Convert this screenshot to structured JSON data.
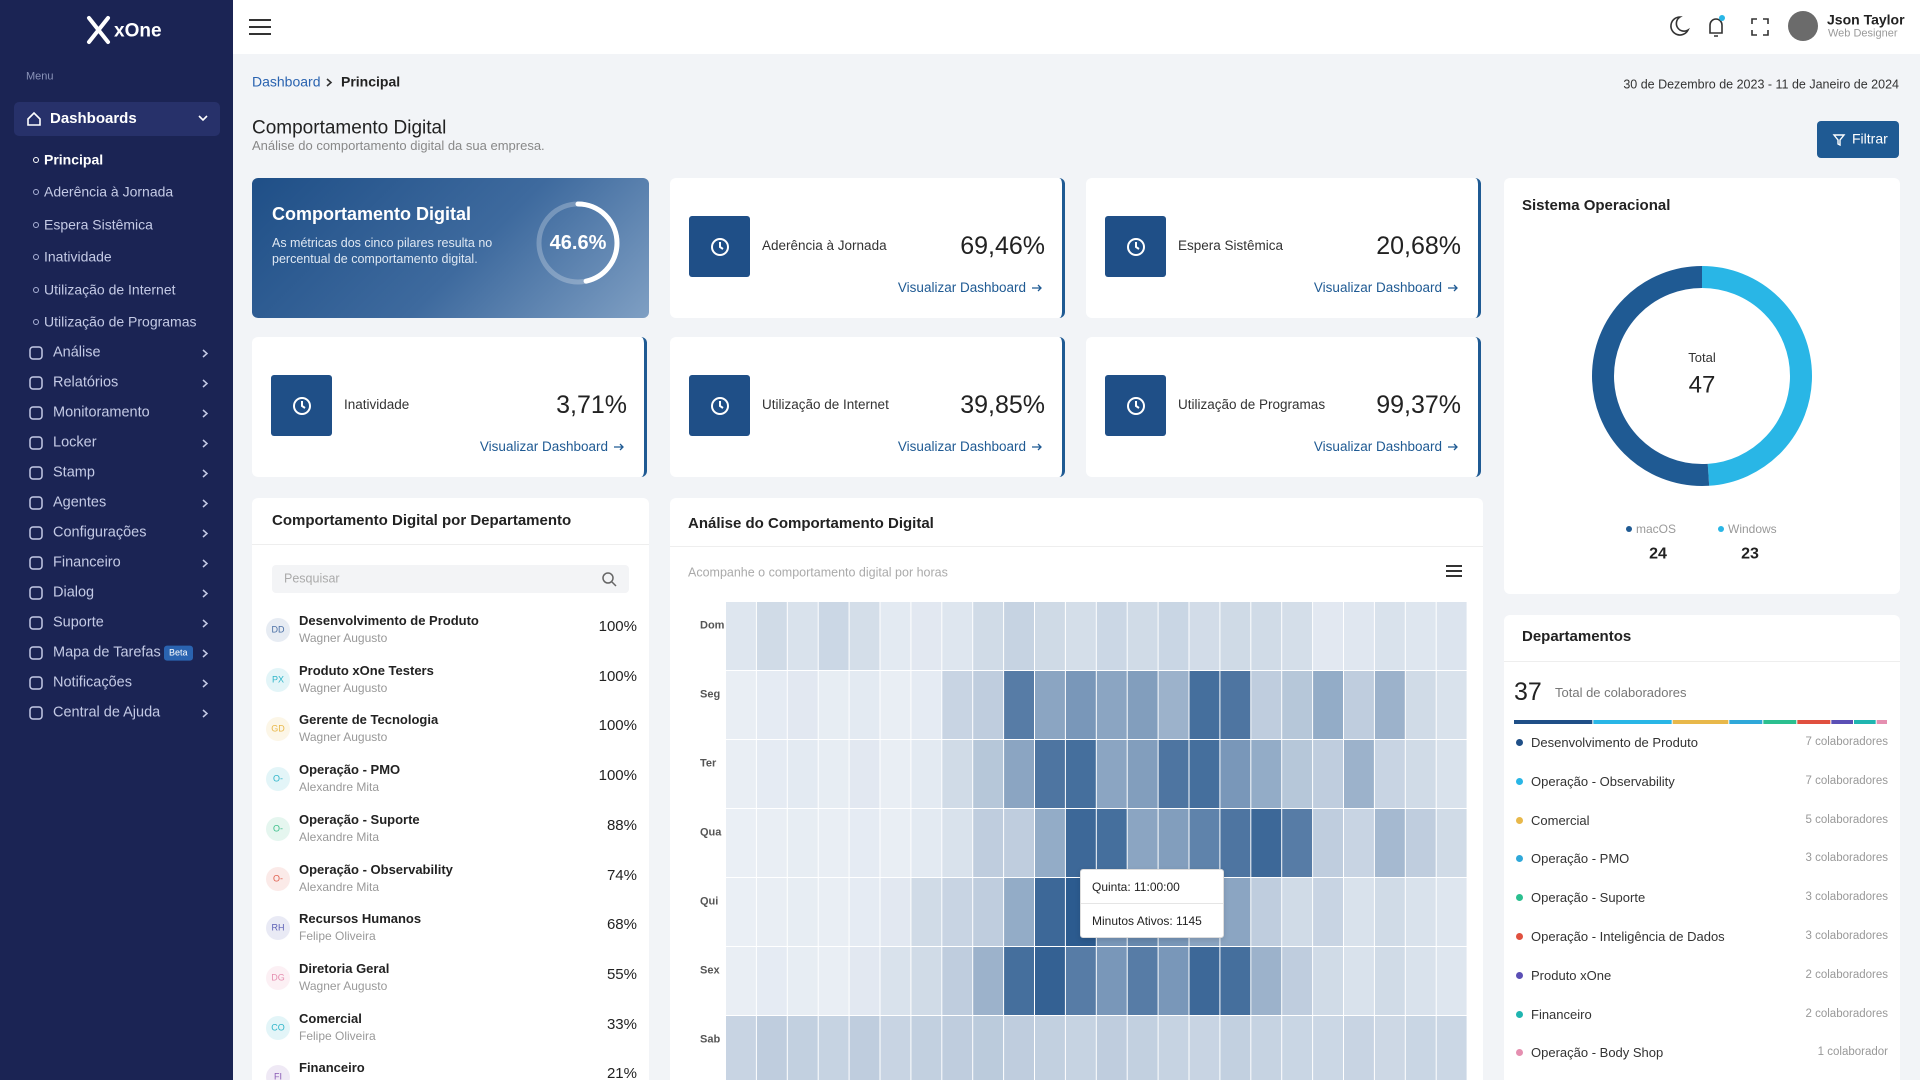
{
  "sidebar": {
    "brand": "xOne",
    "menu_label": "Menu",
    "items": [
      {
        "label": "Dashboards",
        "children": [
          "Principal",
          "Aderência à Jornada",
          "Espera Sistêmica",
          "Inatividade",
          "Utilização de Internet",
          "Utilização de Programas"
        ]
      },
      {
        "label": "Análise"
      },
      {
        "label": "Relatórios"
      },
      {
        "label": "Monitoramento"
      },
      {
        "label": "Locker"
      },
      {
        "label": "Stamp"
      },
      {
        "label": "Agentes"
      },
      {
        "label": "Configurações"
      },
      {
        "label": "Financeiro"
      },
      {
        "label": "Dialog"
      },
      {
        "label": "Suporte"
      },
      {
        "label": "Mapa de Tarefas",
        "badge": "Beta"
      },
      {
        "label": "Notificações"
      },
      {
        "label": "Central de Ajuda"
      }
    ]
  },
  "header": {
    "user_name": "Json Taylor",
    "user_role": "Web Designer"
  },
  "breadcrumb": [
    "Dashboard",
    "Principal"
  ],
  "date_range": "30 de Dezembro de 2023 - 11 de Janeiro de 2024",
  "page": {
    "title": "Comportamento Digital",
    "subtitle": "Análise do comportamento digital da sua empresa.",
    "filter_button": "Filtrar"
  },
  "hero": {
    "title": "Comportamento Digital",
    "text": "As métricas dos cinco pilares resulta no percentual de comportamento digital.",
    "gauge": {
      "value": 46.6,
      "value_label": "46.6%"
    }
  },
  "metrics": [
    {
      "label": "Aderência à Jornada",
      "value": "69,46%",
      "link": "Visualizar Dashboard"
    },
    {
      "label": "Espera Sistêmica",
      "value": "20,68%",
      "link": "Visualizar Dashboard"
    },
    {
      "label": "Inatividade",
      "value": "3,71%",
      "link": "Visualizar Dashboard"
    },
    {
      "label": "Utilização de Internet",
      "value": "39,85%",
      "link": "Visualizar Dashboard"
    },
    {
      "label": "Utilização de Programas",
      "value": "99,37%",
      "link": "Visualizar Dashboard"
    }
  ],
  "departments_panel": {
    "title": "Comportamento Digital por Departamento",
    "search_placeholder": "Pesquisar",
    "rows": [
      {
        "initials": "DD",
        "name": "Desenvolvimento de Produto",
        "manager": "Wagner Augusto",
        "percent": "100%",
        "color": "#4a6fa5"
      },
      {
        "initials": "PX",
        "name": "Produto xOne Testers",
        "manager": "Wagner Augusto",
        "percent": "100%",
        "color": "#2fb5c9"
      },
      {
        "initials": "GD",
        "name": "Gerente de Tecnologia",
        "manager": "Wagner Augusto",
        "percent": "100%",
        "color": "#e8b84a"
      },
      {
        "initials": "O-",
        "name": "Operação - PMO",
        "manager": "Alexandre Mita",
        "percent": "100%",
        "color": "#2fb5c9"
      },
      {
        "initials": "O-",
        "name": "Operação - Suporte",
        "manager": "Alexandre Mita",
        "percent": "88%",
        "color": "#3cbf8a"
      },
      {
        "initials": "O-",
        "name": "Operação - Observability",
        "manager": "Alexandre Mita",
        "percent": "74%",
        "color": "#e0604f"
      },
      {
        "initials": "RH",
        "name": "Recursos Humanos",
        "manager": "Felipe Oliveira",
        "percent": "68%",
        "color": "#5b5fb5"
      },
      {
        "initials": "DG",
        "name": "Diretoria Geral",
        "manager": "Wagner Augusto",
        "percent": "55%",
        "color": "#e58fb0"
      },
      {
        "initials": "CO",
        "name": "Comercial",
        "manager": "Felipe Oliveira",
        "percent": "33%",
        "color": "#2fb5c9"
      },
      {
        "initials": "FI",
        "name": "Financeiro",
        "manager": "",
        "percent": "21%",
        "color": "#8a5bb5"
      }
    ]
  },
  "heatmap": {
    "title": "Análise do Comportamento Digital",
    "subtitle": "Acompanhe o comportamento digital por horas",
    "rows": [
      "Dom",
      "Seg",
      "Ter",
      "Qua",
      "Qui",
      "Sex",
      "Sab"
    ],
    "color_scale": [
      "#f3f6fa",
      "#2c5b8f"
    ],
    "values": [
      [
        120,
        200,
        150,
        230,
        180,
        90,
        100,
        120,
        200,
        260,
        210,
        180,
        230,
        200,
        240,
        190,
        210,
        200,
        180,
        100,
        110,
        150,
        120,
        130
      ],
      [
        60,
        80,
        100,
        70,
        90,
        60,
        80,
        250,
        300,
        900,
        600,
        700,
        600,
        650,
        500,
        1000,
        950,
        300,
        350,
        550,
        300,
        500,
        200,
        150
      ],
      [
        60,
        80,
        90,
        70,
        100,
        60,
        90,
        200,
        350,
        600,
        950,
        1000,
        600,
        650,
        950,
        1000,
        700,
        550,
        350,
        300,
        500,
        250,
        200,
        150
      ],
      [
        50,
        60,
        70,
        60,
        80,
        60,
        90,
        150,
        300,
        300,
        550,
        1050,
        1000,
        600,
        650,
        850,
        950,
        1050,
        900,
        300,
        250,
        450,
        300,
        200
      ],
      [
        50,
        60,
        70,
        60,
        80,
        100,
        200,
        250,
        300,
        550,
        1050,
        1145,
        700,
        800,
        700,
        600,
        600,
        300,
        200,
        250,
        150,
        200,
        150,
        120
      ],
      [
        60,
        80,
        70,
        60,
        100,
        150,
        200,
        300,
        500,
        1000,
        1100,
        900,
        700,
        900,
        700,
        1050,
        1000,
        500,
        300,
        200,
        150,
        200,
        150,
        120
      ],
      [
        250,
        300,
        280,
        260,
        300,
        250,
        280,
        300,
        320,
        300,
        280,
        260,
        300,
        280,
        260,
        250,
        280,
        260,
        240,
        230,
        250,
        220,
        240,
        230
      ]
    ],
    "tooltip": {
      "title": "Quinta: 11:00:00",
      "text": "Minutos Ativos: 1145"
    }
  },
  "os": {
    "title": "Sistema Operacional",
    "total_label": "Total",
    "total": 47,
    "series": [
      {
        "name": "macOS",
        "value": 24,
        "color": "#1f5a93"
      },
      {
        "name": "Windows",
        "value": 23,
        "color": "#29b6e6"
      }
    ]
  },
  "departments": {
    "title": "Departamentos",
    "total": 37,
    "total_label": "Total de colaboradores",
    "items": [
      {
        "name": "Desenvolvimento de Produto",
        "count": 7,
        "count_label": "7 colaboradores",
        "color": "#1f4f87"
      },
      {
        "name": "Operação - Observability",
        "count": 7,
        "count_label": "7 colaboradores",
        "color": "#29b6e6"
      },
      {
        "name": "Comercial",
        "count": 5,
        "count_label": "5 colaboradores",
        "color": "#e8b84a"
      },
      {
        "name": "Operação - PMO",
        "count": 3,
        "count_label": "3 colaboradores",
        "color": "#2fa8d9"
      },
      {
        "name": "Operação - Suporte",
        "count": 3,
        "count_label": "3 colaboradores",
        "color": "#2bbf8f"
      },
      {
        "name": "Operação - Inteligência de Dados",
        "count": 3,
        "count_label": "3 colaboradores",
        "color": "#e0503f"
      },
      {
        "name": "Produto xOne",
        "count": 2,
        "count_label": "2 colaboradores",
        "color": "#5b4fb5"
      },
      {
        "name": "Financeiro",
        "count": 2,
        "count_label": "2 colaboradores",
        "color": "#1fb5b0"
      },
      {
        "name": "Operação - Body Shop",
        "count": 1,
        "count_label": "1 colaborador",
        "color": "#e58fb0"
      }
    ]
  }
}
